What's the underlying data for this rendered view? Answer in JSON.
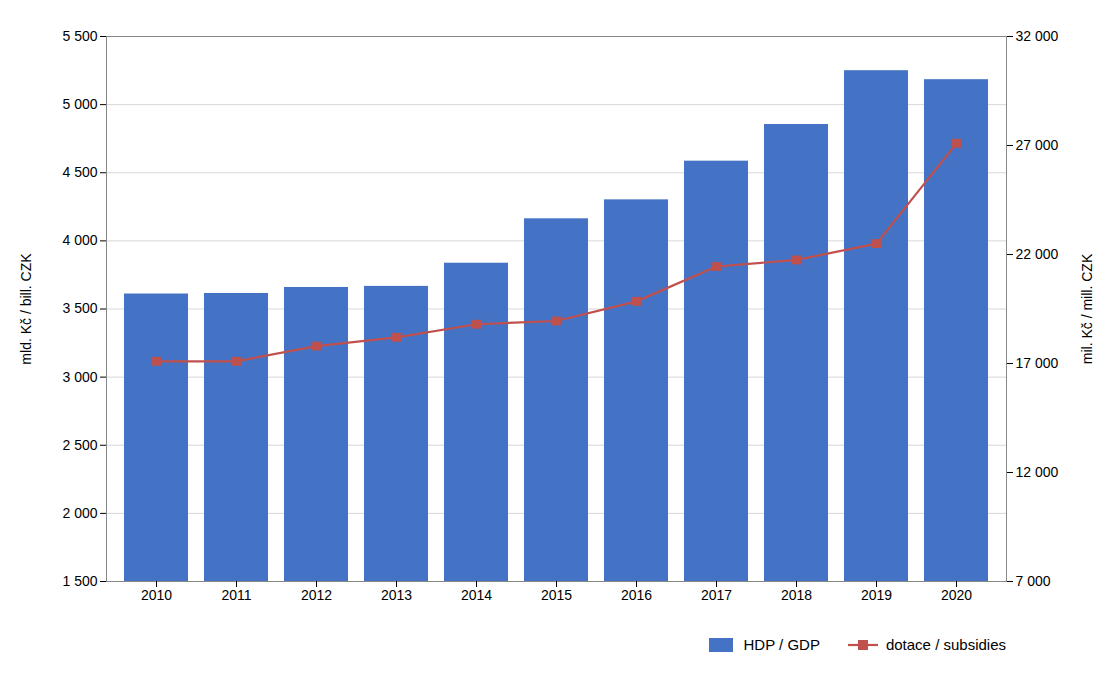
{
  "chart_data": {
    "type": "bar",
    "categories": [
      "2010",
      "2011",
      "2012",
      "2013",
      "2014",
      "2015",
      "2016",
      "2017",
      "2018",
      "2019",
      "2020"
    ],
    "series": [
      {
        "name": "HDP / GDP",
        "type": "bar",
        "color": "#4472C4",
        "values": [
          3610,
          3614,
          3658,
          3666,
          3836,
          4162,
          4301,
          4585,
          4854,
          5249,
          5183
        ]
      },
      {
        "name": "dotace / subsidies",
        "type": "line",
        "color": "#C0504D",
        "marker": "square",
        "axis": "y2",
        "values": [
          17100,
          17100,
          17800,
          18200,
          18800,
          18950,
          19850,
          21450,
          21750,
          22500,
          27100
        ]
      }
    ],
    "ylabel": "mld. Kč / bill. CZK",
    "y2label": "mil. Kč / mill. CZK",
    "ylim": [
      1500,
      5500
    ],
    "yticks": [
      {
        "value": 1500,
        "label": "1 500"
      },
      {
        "value": 2000,
        "label": "2 000"
      },
      {
        "value": 2500,
        "label": "2 500"
      },
      {
        "value": 3000,
        "label": "3 000"
      },
      {
        "value": 3500,
        "label": "3 500"
      },
      {
        "value": 4000,
        "label": "4 000"
      },
      {
        "value": 4500,
        "label": "4 500"
      },
      {
        "value": 5000,
        "label": "5 000"
      },
      {
        "value": 5500,
        "label": "5 500"
      }
    ],
    "y2lim": [
      7000,
      32000
    ],
    "y2ticks": [
      {
        "value": 7000,
        "label": "7 000"
      },
      {
        "value": 12000,
        "label": "12 000"
      },
      {
        "value": 17000,
        "label": "17 000"
      },
      {
        "value": 22000,
        "label": "22 000"
      },
      {
        "value": 27000,
        "label": "27 000"
      },
      {
        "value": 32000,
        "label": "32 000"
      }
    ],
    "grid": true,
    "legend": "lower right"
  }
}
